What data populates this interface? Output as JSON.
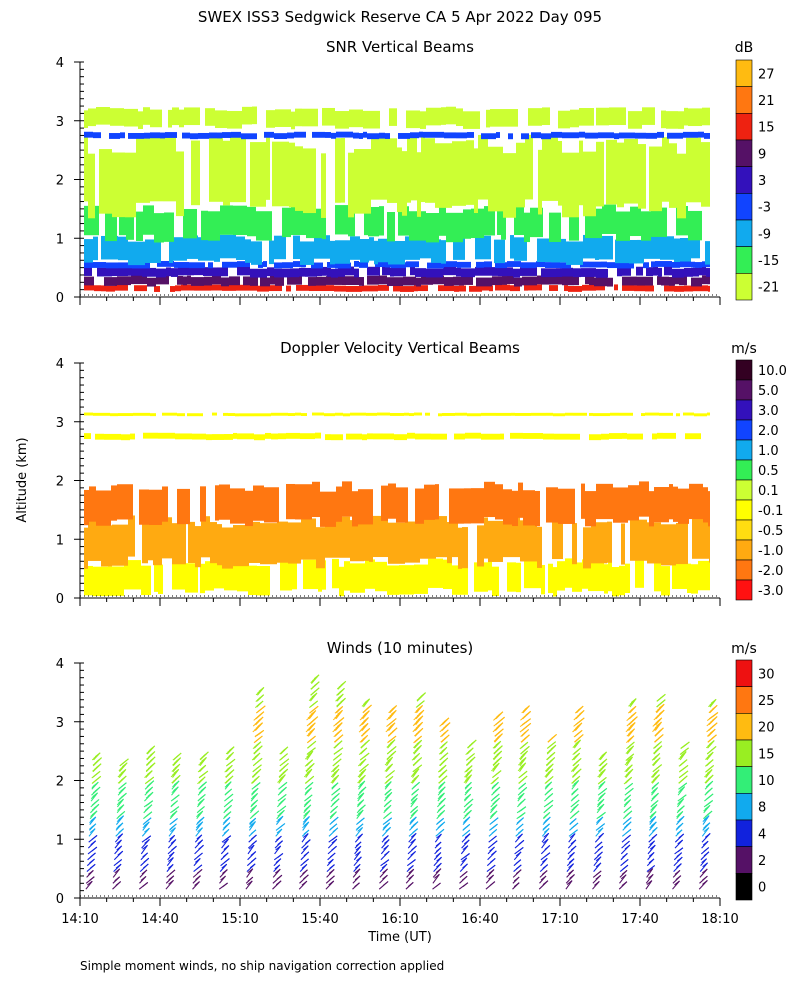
{
  "title": "SWEX ISS3 Sedgwick Reserve CA    5 Apr 2022 Day 095",
  "footnote": "Simple moment winds, no ship navigation correction applied",
  "xlabel": "Time (UT)",
  "ylabel": "Altitude (km)",
  "colors": {
    "white": "#ffffff",
    "lime": "#ccff33",
    "green": "#33ee55",
    "cyan": "#11aaee",
    "blue": "#1144ff",
    "indigo": "#3311bb",
    "purple": "#551166",
    "red": "#ee2211",
    "orange": "#ff7711",
    "gold": "#ffbb11",
    "yellow": "#ffff00"
  },
  "chart_data": [
    {
      "type": "heatmap",
      "title": "SNR Vertical Beams",
      "unit": "dB",
      "xlabel": "Time (UT)",
      "ylabel": "Altitude (km)",
      "x_range": [
        "14:10",
        "18:10"
      ],
      "y_range": [
        0,
        4
      ],
      "yticks": [
        0,
        1,
        2,
        3,
        4
      ],
      "xticks": [
        "14:10",
        "14:40",
        "15:10",
        "15:40",
        "16:10",
        "16:40",
        "17:10",
        "17:40",
        "18:10"
      ],
      "colorbar": {
        "labels": [
          "27",
          "21",
          "15",
          "9",
          "3",
          "-3",
          "-9",
          "-15",
          "-21"
        ],
        "colors": [
          "#ffbb11",
          "#ff7711",
          "#ee2211",
          "#551166",
          "#3311bb",
          "#1144ff",
          "#11aaee",
          "#33ee55",
          "#ccff33"
        ]
      },
      "rows": [
        {
          "alt": [
            0.1,
            0.2
          ],
          "value": 18,
          "label": "15 to 21"
        },
        {
          "alt": [
            0.2,
            0.35
          ],
          "value": 10,
          "label": "9 to 15"
        },
        {
          "alt": [
            0.35,
            0.5
          ],
          "value": 5,
          "label": "3 to 9"
        },
        {
          "alt": [
            0.5,
            0.6
          ],
          "value": 0,
          "label": "-3 to 3"
        },
        {
          "alt": [
            0.6,
            1.0
          ],
          "value": -7,
          "label": "-9 to -3"
        },
        {
          "alt": [
            1.0,
            1.5
          ],
          "value": -13,
          "label": "-15 to -9"
        },
        {
          "alt": [
            1.5,
            2.6
          ],
          "value": -18,
          "label": "-21 to -15"
        },
        {
          "alt": [
            2.7,
            2.8
          ],
          "value": 0,
          "label": "-3 to 3"
        },
        {
          "alt": [
            2.9,
            3.2
          ],
          "value": -20,
          "label": "-21 to -15"
        }
      ]
    },
    {
      "type": "heatmap",
      "title": "Doppler Velocity Vertical Beams",
      "unit": "m/s",
      "xlabel": "Time (UT)",
      "ylabel": "Altitude (km)",
      "x_range": [
        "14:10",
        "18:10"
      ],
      "y_range": [
        0,
        4
      ],
      "yticks": [
        0,
        1,
        2,
        3,
        4
      ],
      "xticks": [
        "14:10",
        "14:40",
        "15:10",
        "15:40",
        "16:10",
        "16:40",
        "17:10",
        "17:40",
        "18:10"
      ],
      "colorbar": {
        "labels": [
          "10.0",
          "5.0",
          "3.0",
          "2.0",
          "1.0",
          "0.5",
          "0.1",
          "-0.1",
          "-0.5",
          "-1.0",
          "-2.0",
          "-3.0"
        ],
        "colors": [
          "#330022",
          "#551166",
          "#3311bb",
          "#1144ff",
          "#11aaee",
          "#33ee55",
          "#ccff33",
          "#ffff00",
          "#ffdd11",
          "#ffaa11",
          "#ff7711",
          "#ff1111"
        ]
      },
      "rows": [
        {
          "alt": [
            0.1,
            0.6
          ],
          "value": -0.05,
          "label": "-0.1 to 0.1"
        },
        {
          "alt": [
            0.6,
            1.3
          ],
          "value": -0.7,
          "label": "-1.0 to -0.5"
        },
        {
          "alt": [
            1.3,
            1.9
          ],
          "value": -1.5,
          "label": "-2.0 to -1.0"
        },
        {
          "alt": [
            2.7,
            2.8
          ],
          "value": 0.0,
          "label": "-0.1 to 0.1"
        },
        {
          "alt": [
            3.1,
            3.15
          ],
          "value": 0.0,
          "label": "-0.1 to 0.1"
        }
      ]
    },
    {
      "type": "scatter",
      "title": "Winds (10 minutes)",
      "unit": "m/s",
      "xlabel": "Time (UT)",
      "ylabel": "Altitude (km)",
      "x_range": [
        "14:10",
        "18:10"
      ],
      "y_range": [
        0,
        4
      ],
      "yticks": [
        0,
        1,
        2,
        3,
        4
      ],
      "xticks": [
        "14:10",
        "14:40",
        "15:10",
        "15:40",
        "16:10",
        "16:40",
        "17:10",
        "17:40",
        "18:10"
      ],
      "colorbar": {
        "labels": [
          "30",
          "25",
          "20",
          "15",
          "10",
          "8",
          "4",
          "2",
          "0"
        ],
        "colors": [
          "#ee1111",
          "#ff7711",
          "#ffbb11",
          "#99ee22",
          "#33ee77",
          "#11aaee",
          "#1122dd",
          "#551166",
          "#000000"
        ]
      },
      "profile_times": [
        "14:15",
        "14:25",
        "14:35",
        "14:45",
        "14:55",
        "15:05",
        "15:15",
        "15:25",
        "15:35",
        "15:45",
        "15:55",
        "16:05",
        "16:15",
        "16:25",
        "16:35",
        "16:45",
        "16:55",
        "17:05",
        "17:15",
        "17:25",
        "17:35",
        "17:45",
        "17:55",
        "18:05"
      ],
      "profile_tops_km": [
        2.4,
        2.3,
        2.5,
        2.4,
        2.4,
        2.5,
        3.5,
        2.5,
        3.7,
        3.6,
        3.3,
        3.2,
        3.4,
        3.0,
        2.6,
        3.1,
        3.2,
        2.7,
        3.2,
        2.4,
        3.3,
        3.4,
        2.6,
        3.3
      ],
      "speed_profile_ms": [
        {
          "alt": 0.2,
          "speed": 3
        },
        {
          "alt": 0.6,
          "speed": 5
        },
        {
          "alt": 1.0,
          "speed": 8
        },
        {
          "alt": 1.4,
          "speed": 11
        },
        {
          "alt": 1.8,
          "speed": 14
        },
        {
          "alt": 2.2,
          "speed": 18
        },
        {
          "alt": 2.6,
          "speed": 20
        },
        {
          "alt": 3.0,
          "speed": 22
        },
        {
          "alt": 3.5,
          "speed": 17
        }
      ]
    }
  ]
}
